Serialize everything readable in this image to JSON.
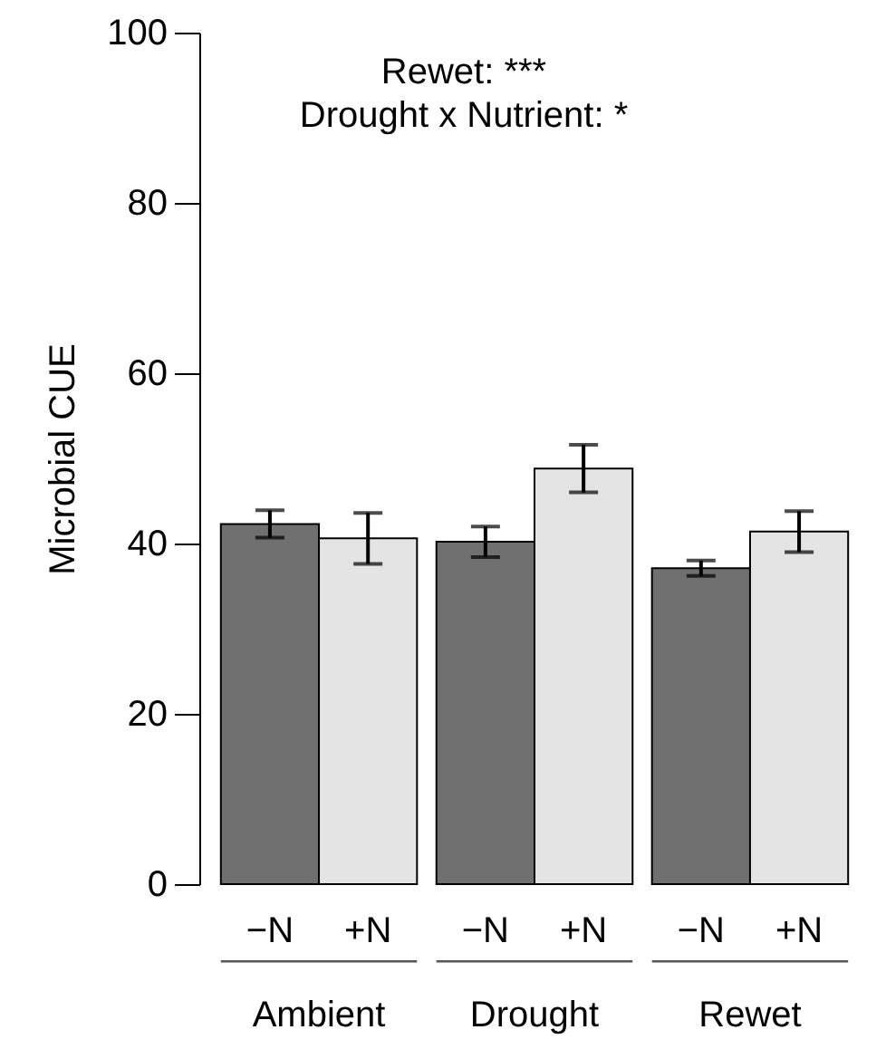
{
  "chart_data": {
    "type": "bar",
    "ylabel": "Microbial CUE",
    "categories": [
      "Ambient",
      "Drought",
      "Rewet"
    ],
    "series": [
      {
        "name": "−N",
        "color": "#707070",
        "values": [
          42.3,
          40.2,
          37.1
        ],
        "errors": [
          1.6,
          1.8,
          0.9
        ]
      },
      {
        "name": "+N",
        "color": "#e4e4e4",
        "values": [
          40.6,
          48.8,
          41.4
        ],
        "errors": [
          3.0,
          2.8,
          2.4
        ]
      }
    ],
    "ylim": [
      0,
      100
    ],
    "yticks": [
      0,
      20,
      40,
      60,
      80,
      100
    ],
    "grid": false,
    "annotations": [
      "Rewet: ***",
      "Drought x Nutrient: *"
    ]
  }
}
